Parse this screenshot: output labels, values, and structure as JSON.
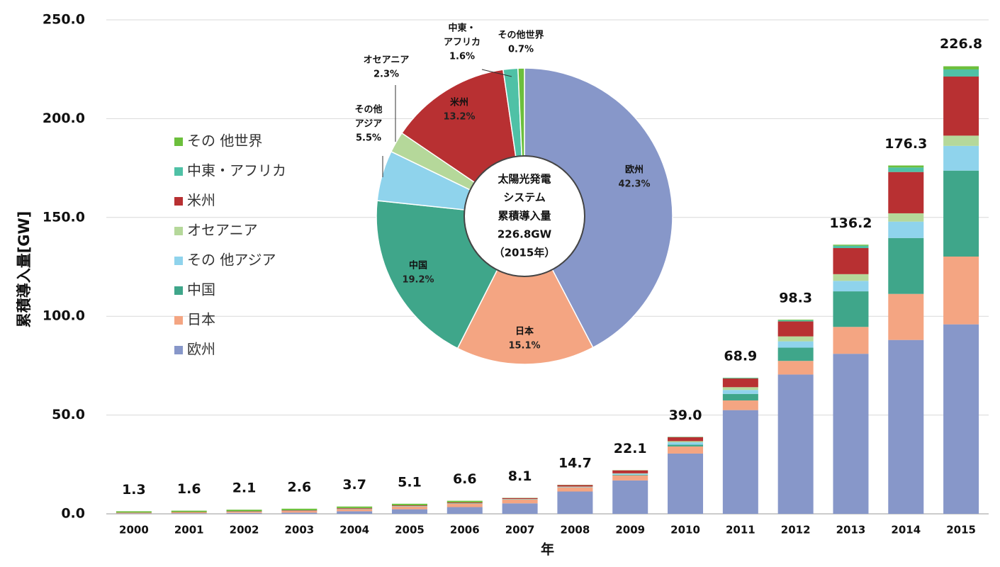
{
  "chart_data": [
    {
      "type": "bar",
      "stacked": true,
      "categories": [
        "2000",
        "2001",
        "2002",
        "2003",
        "2004",
        "2005",
        "2006",
        "2007",
        "2008",
        "2009",
        "2010",
        "2011",
        "2012",
        "2013",
        "2014",
        "2015"
      ],
      "x_label": "年",
      "y_label": "累積導入量[GW]",
      "ylim": [
        0,
        250
      ],
      "yticks": [
        {
          "value": 0,
          "label": "0.0"
        },
        {
          "value": 50,
          "label": "50.0"
        },
        {
          "value": 100,
          "label": "100.0"
        },
        {
          "value": 150,
          "label": "150.0"
        },
        {
          "value": 200,
          "label": "200.0"
        },
        {
          "value": 250,
          "label": "250.0"
        }
      ],
      "grid": true,
      "series": [
        {
          "name": "欧州",
          "color": "#8797c9",
          "values": [
            0.2,
            0.3,
            0.4,
            0.6,
            1.3,
            2.3,
            3.4,
            5.3,
            11.3,
            16.9,
            30.5,
            52.5,
            70.5,
            81,
            88,
            95.9
          ]
        },
        {
          "name": "日本",
          "color": "#f4a582",
          "values": [
            0.3,
            0.5,
            0.6,
            0.9,
            1.1,
            1.4,
            1.7,
            1.9,
            2.1,
            2.6,
            3.6,
            4.9,
            6.9,
            13.6,
            23.3,
            34.3
          ]
        },
        {
          "name": "中国",
          "color": "#3fa68a",
          "values": [
            0,
            0,
            0,
            0,
            0.1,
            0.1,
            0.1,
            0.1,
            0.1,
            0.3,
            0.9,
            3.3,
            6.7,
            18,
            28.3,
            43.5
          ]
        },
        {
          "name": "その 他アジア",
          "color": "#8fd3ec",
          "values": [
            0,
            0,
            0.1,
            0.1,
            0.1,
            0.1,
            0.1,
            0.1,
            0.2,
            0.5,
            1.2,
            2,
            3.2,
            5.3,
            8.3,
            12.5
          ]
        },
        {
          "name": "オセアニア",
          "color": "#b5d89a",
          "values": [
            0,
            0,
            0,
            0,
            0,
            0.1,
            0.1,
            0.1,
            0.1,
            0.2,
            0.6,
            1.4,
            2.5,
            3.4,
            4.2,
            5.2
          ]
        },
        {
          "name": "米州",
          "color": "#b83032",
          "values": [
            0.1,
            0.1,
            0.2,
            0.2,
            0.3,
            0.3,
            0.4,
            0.5,
            0.8,
            1.5,
            2,
            4.4,
            7.6,
            13.2,
            20.9,
            29.9
          ]
        },
        {
          "name": "中東・アフリカ",
          "color": "#4fc1a6",
          "values": [
            0,
            0,
            0,
            0,
            0,
            0,
            0,
            0,
            0,
            0,
            0.1,
            0.3,
            0.6,
            1.2,
            2.3,
            3.6
          ]
        },
        {
          "name": "その 他世界",
          "color": "#6cbf3c",
          "values": [
            0.7,
            0.7,
            0.8,
            0.8,
            0.8,
            0.8,
            0.8,
            0.1,
            0.1,
            0.1,
            0.1,
            0.1,
            0.3,
            0.5,
            1,
            1.6
          ]
        }
      ],
      "totals": [
        1.3,
        1.6,
        2.1,
        2.6,
        3.7,
        5.1,
        6.6,
        8.1,
        14.7,
        22.1,
        39.0,
        68.9,
        98.3,
        136.2,
        176.3,
        226.8
      ],
      "total_labels": [
        "1.3",
        "1.6",
        "2.1",
        "2.6",
        "3.7",
        "5.1",
        "6.6",
        "8.1",
        "14.7",
        "22.1",
        "39.0",
        "68.9",
        "98.3",
        "136.2",
        "176.3",
        "226.8"
      ]
    },
    {
      "type": "pie",
      "hole": true,
      "center_text": [
        "太陽光発電",
        "システム",
        "累積導入量",
        "226.8GW",
        "（2015年）"
      ],
      "labels": [
        [
          "欧州"
        ],
        [
          "日本"
        ],
        [
          "中国"
        ],
        [
          "その他",
          "アジア"
        ],
        [
          "オセアニア"
        ],
        [
          "米州"
        ],
        [
          "中東・",
          "アフリカ"
        ],
        [
          "その他世界"
        ]
      ],
      "values": [
        42.3,
        15.1,
        19.2,
        5.5,
        2.3,
        13.2,
        1.6,
        0.7
      ],
      "value_labels": [
        "42.3%",
        "15.1%",
        "19.2%",
        "5.5%",
        "2.3%",
        "13.2%",
        "1.6%",
        "0.7%"
      ],
      "colors": [
        "#8797c9",
        "#f4a582",
        "#3fa68a",
        "#8fd3ec",
        "#b5d89a",
        "#b83032",
        "#4fc1a6",
        "#6cbf3c"
      ]
    }
  ]
}
